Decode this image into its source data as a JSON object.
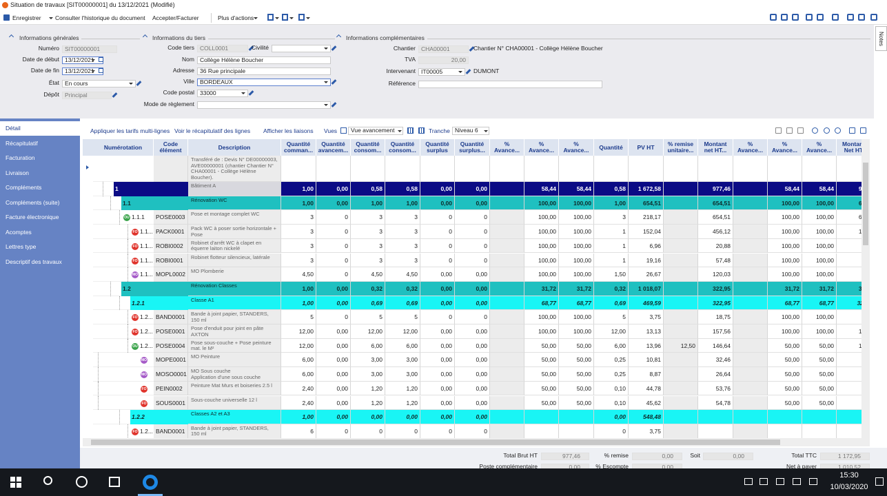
{
  "title_bar": "Situation de travaux [SIT00000001] du 13/12/2021 (Modifié)",
  "toolbar": {
    "save": "Enregistrer",
    "history": "Consulter l'historique du document",
    "accept": "Accepter/Facturer",
    "more": "Plus d'actions"
  },
  "notes_tab": "Notes",
  "general": {
    "title": "Informations générales",
    "fields": [
      {
        "label": "Numéro",
        "value": "SIT00000001"
      },
      {
        "label": "Date de début",
        "value": "13/12/2021"
      },
      {
        "label": "Date de fin",
        "value": "13/12/2021"
      },
      {
        "label": "État",
        "value": "En cours"
      },
      {
        "label": "Dépôt",
        "value": "Principal"
      }
    ]
  },
  "third_party": {
    "title": "Informations du tiers",
    "fields": [
      {
        "label": "Code tiers",
        "value": "COLL0001"
      },
      {
        "label": "Civilité",
        "value": null
      },
      {
        "label": "Nom",
        "value": "Collège Hélène Boucher"
      },
      {
        "label": "Adresse",
        "value": "36 Rue principale"
      },
      {
        "label": "Ville",
        "value": "BORDEAUX"
      },
      {
        "label": "Code postal",
        "value": "33000"
      },
      {
        "label": "Mode de règlement",
        "value": null
      }
    ]
  },
  "extra": {
    "title": "Informations complémentaires",
    "fields": [
      {
        "label": "Chantier",
        "value": "CHA00001",
        "note": "Chantier N° CHA00001 - Collège Hélène Boucher"
      },
      {
        "label": "TVA",
        "value": "20,00"
      },
      {
        "label": "Intervenant",
        "value": "IT00005",
        "note": "DUMONT"
      },
      {
        "label": "Référence",
        "value": null
      }
    ]
  },
  "nav": [
    "Détail",
    "Récapitulatif",
    "Facturation",
    "Livraison",
    "Compléments",
    "Compléments (suite)",
    "Facture électronique",
    "Acomptes",
    "Lettres type",
    "Descriptif des travaux"
  ],
  "grid_toolbar": {
    "apply": "Appliquer les tarifs multi-lignes",
    "recap": "Voir le récapitulatif des lignes",
    "links": "Afficher les liaisons",
    "views": "Vues",
    "view": "Vue avancement",
    "tranche": "Tranche",
    "level": "Niveau 6"
  },
  "table": {
    "columns": [
      "Numérotation",
      "Code élément",
      "Description",
      "Quantité comman...",
      "Quantité avancem...",
      "Quantité consom...",
      "Quantité consom...",
      "Quantité surplus",
      "Quantité surplus...",
      "% Avance...",
      "% Avance...",
      "% Avance...",
      "Quantité",
      "PV HT",
      "% remise unitaire...",
      "Montant net HT...",
      "% Avance...",
      "% Avance...",
      "% Avance...",
      "Montant Net HT"
    ],
    "rows": [
      {
        "num": null,
        "code": null,
        "desc": "Transféré de : Devis N° DE00000003, AVE00000001 (chantier Chantier N° CHA00001 - Collège Hélène Boucher).",
        "cells": []
      },
      {
        "num": "1",
        "code": null,
        "desc": "Bâtiment A",
        "cells": [
          "1,00",
          "0,00",
          "0,58",
          "0,58",
          "0,00",
          "0,00",
          null,
          "58,44",
          "58,44",
          "0,58",
          "1 672,58",
          null,
          "977,46",
          null,
          "58,44",
          "58,44",
          "977"
        ]
      },
      {
        "num": "1.1",
        "code": null,
        "desc": "Rénovation WC",
        "cells": [
          "1,00",
          "0,00",
          "1,00",
          "1,00",
          "0,00",
          "0,00",
          null,
          "100,00",
          "100,00",
          "1,00",
          "654,51",
          null,
          "654,51",
          null,
          "100,00",
          "100,00",
          "654"
        ]
      },
      {
        "num": "1.1.1",
        "icon": "OU",
        "code": "POSE0003",
        "desc": "Pose et montage complet WC",
        "cells": [
          "3",
          "0",
          "3",
          "3",
          "0",
          "0",
          null,
          "100,00",
          "100,00",
          "3",
          "218,17",
          null,
          "654,51",
          null,
          "100,00",
          "100,00",
          "654"
        ]
      },
      {
        "num": "1.1...",
        "icon": "FO",
        "code": "PACK0001",
        "desc": "Pack WC à poser sortie horizontale + Pose",
        "cells": [
          "3",
          "0",
          "3",
          "3",
          "0",
          "0",
          null,
          "100,00",
          "100,00",
          "1",
          "152,04",
          null,
          "456,12",
          null,
          "100,00",
          "100,00",
          "161"
        ]
      },
      {
        "num": "1.1...",
        "icon": "FO",
        "code": "ROBI0002",
        "desc": "Robinet d'arrêt WC à clapet en équerre laiton nickelé",
        "cells": [
          "3",
          "0",
          "3",
          "3",
          "0",
          "0",
          null,
          "100,00",
          "100,00",
          "1",
          "6,96",
          null,
          "20,88",
          null,
          "100,00",
          "100,00",
          "7"
        ]
      },
      {
        "num": "1.1...",
        "icon": "FO",
        "code": "ROBI0001",
        "desc": "Robinet flotteur silencieux, latérale",
        "cells": [
          "3",
          "0",
          "3",
          "3",
          "0",
          "0",
          null,
          "100,00",
          "100,00",
          "1",
          "19,16",
          null,
          "57,48",
          null,
          "100,00",
          "100,00",
          "20"
        ]
      },
      {
        "num": "1.1...",
        "icon": "MO",
        "code": "MOPL0002",
        "desc": "MO Plomberie",
        "cells": [
          "4,50",
          "0",
          "4,50",
          "4,50",
          "0,00",
          "0,00",
          null,
          "100,00",
          "100,00",
          "1,50",
          "26,67",
          null,
          "120,03",
          null,
          "100,00",
          "100,00",
          "28"
        ]
      },
      {
        "num": "1.2",
        "code": null,
        "desc": "Rénovation Classes",
        "cells": [
          "1,00",
          "0,00",
          "0,32",
          "0,32",
          "0,00",
          "0,00",
          null,
          "31,72",
          "31,72",
          "0,32",
          "1 018,07",
          null,
          "322,95",
          null,
          "31,72",
          "31,72",
          "322"
        ]
      },
      {
        "num": "1.2.1",
        "code": null,
        "desc": "Classe A1",
        "cells": [
          "1,00",
          "0,00",
          "0,69",
          "0,69",
          "0,00",
          "0,00",
          null,
          "68,77",
          "68,77",
          "0,69",
          "469,59",
          null,
          "322,95",
          null,
          "68,77",
          "68,77",
          "322,"
        ]
      },
      {
        "num": "1.2...",
        "icon": "FO",
        "code": "BAND0001",
        "desc": "Bande à joint papier, STANDERS, 150 ml",
        "cells": [
          "5",
          "0",
          "5",
          "5",
          "0",
          "0",
          null,
          "100,00",
          "100,00",
          "5",
          "3,75",
          null,
          "18,75",
          null,
          "100,00",
          "100,00",
          "18"
        ]
      },
      {
        "num": "1.2...",
        "icon": "FO",
        "code": "POSE0001",
        "desc": "Pose d'enduit pour joint en pâte AXTON",
        "cells": [
          "12,00",
          "0,00",
          "12,00",
          "12,00",
          "0,00",
          "0,00",
          null,
          "100,00",
          "100,00",
          "12,00",
          "13,13",
          null,
          "157,56",
          null,
          "100,00",
          "100,00",
          "157"
        ]
      },
      {
        "num": "1.2...",
        "icon": "OU",
        "code": "POSE0004",
        "desc": "Pose sous-couche + Pose peinture mat. le M²",
        "cells": [
          "12,00",
          "0,00",
          "6,00",
          "6,00",
          "0,00",
          "0,00",
          null,
          "50,00",
          "50,00",
          "6,00",
          "13,96",
          "12,50",
          "146,64",
          null,
          "50,00",
          "50,00",
          "146"
        ]
      },
      {
        "num": null,
        "icon": "MO",
        "code": "MOPE0001",
        "desc": "MO Peinture",
        "cells": [
          "6,00",
          "0,00",
          "3,00",
          "3,00",
          "0,00",
          "0,00",
          null,
          "50,00",
          "50,00",
          "0,25",
          "10,81",
          null,
          "32,46",
          null,
          "50,00",
          "50,00",
          "1"
        ]
      },
      {
        "num": null,
        "icon": "MO",
        "code": "MOSO0001",
        "desc": "MO Sous couche\nApplication d'une sous couche",
        "cells": [
          "6,00",
          "0,00",
          "3,00",
          "3,00",
          "0,00",
          "0,00",
          null,
          "50,00",
          "50,00",
          "0,25",
          "8,87",
          null,
          "26,64",
          null,
          "50,00",
          "50,00",
          "1"
        ]
      },
      {
        "num": null,
        "icon": "FO",
        "code": "PEIN0002",
        "desc": "Peinture Mat Murs et boiseries 2.5 l",
        "cells": [
          "2,40",
          "0,00",
          "1,20",
          "1,20",
          "0,00",
          "0,00",
          null,
          "50,00",
          "50,00",
          "0,10",
          "44,78",
          null,
          "53,76",
          null,
          "50,00",
          "50,00",
          "5"
        ]
      },
      {
        "num": null,
        "icon": "FO",
        "code": "SOUS0001",
        "desc": "Sous-couche universelle 12 l",
        "cells": [
          "2,40",
          "0,00",
          "1,20",
          "1,20",
          "0,00",
          "0,00",
          null,
          "50,00",
          "50,00",
          "0,10",
          "45,62",
          null,
          "54,78",
          null,
          "50,00",
          "50,00",
          "5"
        ]
      },
      {
        "num": "1.2.2",
        "code": null,
        "desc": "Classes A2 et A3",
        "cells": [
          "1,00",
          "0,00",
          "0,00",
          "0,00",
          "0,00",
          "0,00",
          null,
          null,
          null,
          "0,00",
          "548,48",
          null,
          null,
          null,
          null,
          null,
          null
        ]
      },
      {
        "num": "1.2...",
        "icon": "FO",
        "code": "BAND0001",
        "desc": "Bande à joint papier, STANDERS, 150 ml",
        "cells": [
          "6",
          "0",
          "0",
          "0",
          "0",
          "0",
          null,
          null,
          null,
          "0",
          "3,75",
          null,
          null,
          null,
          null,
          null,
          null
        ]
      }
    ]
  },
  "totals": [
    {
      "label": "Total Brut HT",
      "value": "977,46"
    },
    {
      "label": "% remise",
      "value": "0,00"
    },
    {
      "label": "Soit",
      "value": "0,00"
    },
    {
      "label": "Total TTC",
      "value": "1 172,95"
    },
    {
      "label": "Poste complémentaire",
      "value": "0,00"
    },
    {
      "label": "% Escompte",
      "value": "0,00"
    },
    {
      "label": "Net à payer",
      "value": "1 010,52"
    }
  ],
  "taskbar": {
    "time": "15:30",
    "date": "10/03/2020"
  }
}
